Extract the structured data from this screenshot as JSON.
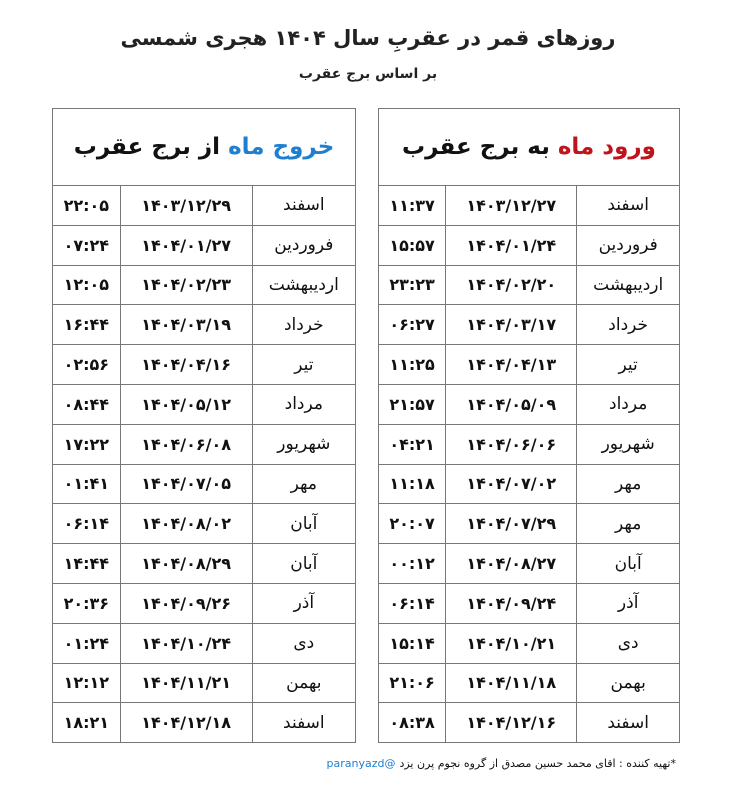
{
  "title": "روزهای قمر در عقربِ سال ۱۴۰۴ هجری شمسی",
  "subtitle": "بر اساس برج عقرب",
  "colors": {
    "entry_accent": "#c0141b",
    "exit_accent": "#1e7fd0"
  },
  "entry_table": {
    "header_highlight": "ورود ماه",
    "header_rest": " به برج عقرب",
    "rows": [
      {
        "month": "اسفند",
        "date": "۱۴۰۳/۱۲/۲۷",
        "time": "۱۱:۳۷"
      },
      {
        "month": "فروردین",
        "date": "۱۴۰۴/۰۱/۲۴",
        "time": "۱۵:۵۷"
      },
      {
        "month": "اردیبهشت",
        "date": "۱۴۰۴/۰۲/۲۰",
        "time": "۲۳:۲۳"
      },
      {
        "month": "خرداد",
        "date": "۱۴۰۴/۰۳/۱۷",
        "time": "۰۶:۲۷"
      },
      {
        "month": "تیر",
        "date": "۱۴۰۴/۰۴/۱۳",
        "time": "۱۱:۲۵"
      },
      {
        "month": "مرداد",
        "date": "۱۴۰۴/۰۵/۰۹",
        "time": "۲۱:۵۷"
      },
      {
        "month": "شهریور",
        "date": "۱۴۰۴/۰۶/۰۶",
        "time": "۰۴:۲۱"
      },
      {
        "month": "مهر",
        "date": "۱۴۰۴/۰۷/۰۲",
        "time": "۱۱:۱۸"
      },
      {
        "month": "مهر",
        "date": "۱۴۰۴/۰۷/۲۹",
        "time": "۲۰:۰۷"
      },
      {
        "month": "آبان",
        "date": "۱۴۰۴/۰۸/۲۷",
        "time": "۰۰:۱۲"
      },
      {
        "month": "آذر",
        "date": "۱۴۰۴/۰۹/۲۴",
        "time": "۰۶:۱۴"
      },
      {
        "month": "دی",
        "date": "۱۴۰۴/۱۰/۲۱",
        "time": "۱۵:۱۴"
      },
      {
        "month": "بهمن",
        "date": "۱۴۰۴/۱۱/۱۸",
        "time": "۲۱:۰۶"
      },
      {
        "month": "اسفند",
        "date": "۱۴۰۴/۱۲/۱۶",
        "time": "۰۸:۳۸"
      }
    ]
  },
  "exit_table": {
    "header_highlight": "خروج ماه",
    "header_rest": " از برج عقرب",
    "rows": [
      {
        "month": "اسفند",
        "date": "۱۴۰۳/۱۲/۲۹",
        "time": "۲۲:۰۵"
      },
      {
        "month": "فروردین",
        "date": "۱۴۰۴/۰۱/۲۷",
        "time": "۰۷:۲۴"
      },
      {
        "month": "اردیبهشت",
        "date": "۱۴۰۴/۰۲/۲۳",
        "time": "۱۲:۰۵"
      },
      {
        "month": "خرداد",
        "date": "۱۴۰۴/۰۳/۱۹",
        "time": "۱۶:۴۴"
      },
      {
        "month": "تیر",
        "date": "۱۴۰۴/۰۴/۱۶",
        "time": "۰۲:۵۶"
      },
      {
        "month": "مرداد",
        "date": "۱۴۰۴/۰۵/۱۲",
        "time": "۰۸:۴۴"
      },
      {
        "month": "شهریور",
        "date": "۱۴۰۴/۰۶/۰۸",
        "time": "۱۷:۲۲"
      },
      {
        "month": "مهر",
        "date": "۱۴۰۴/۰۷/۰۵",
        "time": "۰۱:۴۱"
      },
      {
        "month": "آبان",
        "date": "۱۴۰۴/۰۸/۰۲",
        "time": "۰۶:۱۴"
      },
      {
        "month": "آبان",
        "date": "۱۴۰۴/۰۸/۲۹",
        "time": "۱۴:۴۴"
      },
      {
        "month": "آذر",
        "date": "۱۴۰۴/۰۹/۲۶",
        "time": "۲۰:۳۶"
      },
      {
        "month": "دی",
        "date": "۱۴۰۴/۱۰/۲۴",
        "time": "۰۱:۲۴"
      },
      {
        "month": "بهمن",
        "date": "۱۴۰۴/۱۱/۲۱",
        "time": "۱۲:۱۲"
      },
      {
        "month": "اسفند",
        "date": "۱۴۰۴/۱۲/۱۸",
        "time": "۱۸:۲۱"
      }
    ]
  },
  "footer": {
    "credit": "*تهیه کننده : اقای محمد حسین مصدق از گروه نجوم پرن یزد",
    "handle": "@paranyazd"
  }
}
